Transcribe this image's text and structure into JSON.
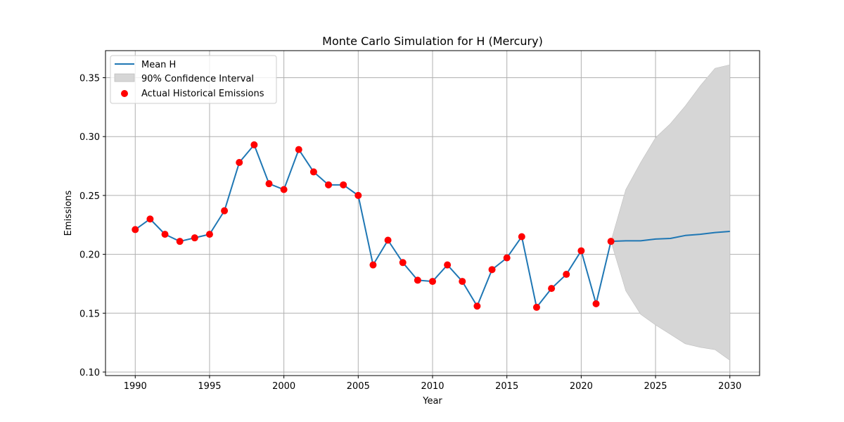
{
  "chart_data": {
    "type": "line",
    "title": "Monte Carlo Simulation for H (Mercury)",
    "xlabel": "Year",
    "ylabel": "Emissions",
    "xlim": [
      1988,
      2032
    ],
    "ylim": [
      0.097,
      0.373
    ],
    "xticks": [
      1990,
      1995,
      2000,
      2005,
      2010,
      2015,
      2020,
      2025,
      2030
    ],
    "yticks": [
      0.1,
      0.15,
      0.2,
      0.25,
      0.3,
      0.35
    ],
    "ytick_labels": [
      "0.10",
      "0.15",
      "0.20",
      "0.25",
      "0.30",
      "0.35"
    ],
    "grid": true,
    "legend_position": "top-left",
    "legend": [
      {
        "label": "Mean H",
        "kind": "line"
      },
      {
        "label": "90% Confidence Interval",
        "kind": "band"
      },
      {
        "label": "Actual Historical Emissions",
        "kind": "marker"
      }
    ],
    "colors": {
      "mean": "#1f77b4",
      "band": "#d6d6d6",
      "band_edge": "#bfbfbf",
      "marker": "#ff0000",
      "grid": "#b0b0b0"
    },
    "series": [
      {
        "name": "Mean H",
        "x": [
          1990,
          1991,
          1992,
          1993,
          1994,
          1995,
          1996,
          1997,
          1998,
          1999,
          2000,
          2001,
          2002,
          2003,
          2004,
          2005,
          2006,
          2007,
          2008,
          2009,
          2010,
          2011,
          2012,
          2013,
          2014,
          2015,
          2016,
          2017,
          2018,
          2019,
          2020,
          2021,
          2022,
          2023,
          2024,
          2025,
          2026,
          2027,
          2028,
          2029,
          2030
        ],
        "y": [
          0.221,
          0.23,
          0.217,
          0.211,
          0.214,
          0.217,
          0.237,
          0.278,
          0.293,
          0.26,
          0.255,
          0.289,
          0.27,
          0.259,
          0.259,
          0.25,
          0.191,
          0.212,
          0.193,
          0.178,
          0.177,
          0.191,
          0.177,
          0.156,
          0.187,
          0.197,
          0.215,
          0.155,
          0.171,
          0.183,
          0.203,
          0.158,
          0.211,
          0.2115,
          0.2115,
          0.213,
          0.2135,
          0.216,
          0.217,
          0.2185,
          0.2195
        ]
      },
      {
        "name": "Actual Historical Emissions",
        "x": [
          1990,
          1991,
          1992,
          1993,
          1994,
          1995,
          1996,
          1997,
          1998,
          1999,
          2000,
          2001,
          2002,
          2003,
          2004,
          2005,
          2006,
          2007,
          2008,
          2009,
          2010,
          2011,
          2012,
          2013,
          2014,
          2015,
          2016,
          2017,
          2018,
          2019,
          2020,
          2021,
          2022
        ],
        "y": [
          0.221,
          0.23,
          0.217,
          0.211,
          0.214,
          0.217,
          0.237,
          0.278,
          0.293,
          0.26,
          0.255,
          0.289,
          0.27,
          0.259,
          0.259,
          0.25,
          0.191,
          0.212,
          0.193,
          0.178,
          0.177,
          0.191,
          0.177,
          0.156,
          0.187,
          0.197,
          0.215,
          0.155,
          0.171,
          0.183,
          0.203,
          0.158,
          0.211
        ]
      },
      {
        "name": "90% Confidence Interval",
        "x": [
          2022,
          2023,
          2024,
          2025,
          2026,
          2027,
          2028,
          2029,
          2030
        ],
        "lower": [
          0.211,
          0.169,
          0.149,
          0.14,
          0.132,
          0.124,
          0.121,
          0.119,
          0.11
        ],
        "upper": [
          0.211,
          0.255,
          0.278,
          0.299,
          0.311,
          0.326,
          0.343,
          0.358,
          0.361
        ]
      }
    ]
  }
}
